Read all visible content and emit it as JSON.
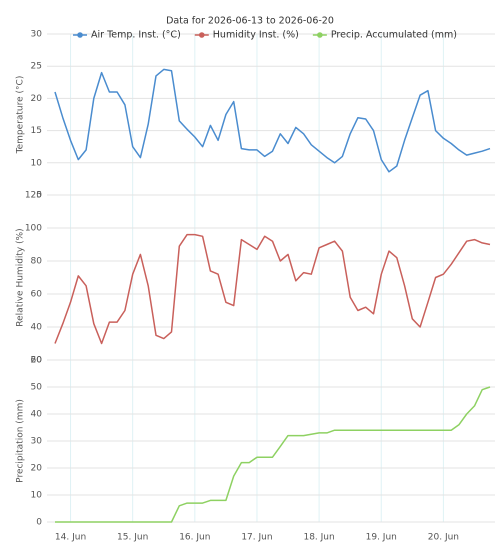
{
  "chart_data": {
    "type": "line",
    "title": "Data for 2026-06-13 to 2026-06-20",
    "categories": [
      null,
      null,
      "14. Jun",
      null,
      null,
      null,
      null,
      null,
      null,
      null,
      "15. Jun",
      null,
      null,
      null,
      null,
      null,
      null,
      null,
      "16. Jun",
      null,
      null,
      null,
      null,
      null,
      null,
      null,
      "17. Jun",
      null,
      null,
      null,
      null,
      null,
      null,
      null,
      "18. Jun",
      null,
      null,
      null,
      null,
      null,
      null,
      null,
      "19. Jun",
      null,
      null,
      null,
      null,
      null,
      null,
      null,
      "20. Jun",
      null,
      null,
      null,
      null,
      null,
      null
    ],
    "grid": true,
    "panels": [
      {
        "ylabel": "Temperature (°C)",
        "ylim": [
          5,
          30
        ],
        "yticks": [
          5,
          10,
          15,
          20,
          25,
          30
        ],
        "series": [
          {
            "name": "Air Temp. Inst. (°C)",
            "color": "#4a8ccf",
            "values": [
              21,
              17,
              13.5,
              10.5,
              12,
              20,
              24,
              21,
              21,
              19,
              12.5,
              10.8,
              16,
              23.5,
              24.5,
              24.3,
              16.5,
              15.2,
              14,
              12.5,
              15.8,
              13.5,
              17.5,
              19.5,
              12.2,
              12,
              12,
              11,
              11.8,
              14.5,
              13,
              15.5,
              14.5,
              12.8,
              11.8,
              10.8,
              10,
              11,
              14.5,
              17,
              16.8,
              15,
              10.5,
              8.6,
              9.5,
              13.5,
              17,
              20.5,
              21.2,
              15,
              13.8,
              13,
              12,
              11.2,
              11.5,
              11.8,
              12.2
            ]
          }
        ]
      },
      {
        "ylabel": "Relative Humidity (%)",
        "ylim": [
          20,
          120
        ],
        "yticks": [
          20,
          40,
          60,
          80,
          100,
          120
        ],
        "series": [
          {
            "name": "Humidity Inst. (%)",
            "color": "#c9605b",
            "values": [
              30,
              42,
              55,
              71,
              65,
              42,
              30,
              43,
              43,
              50,
              72,
              84,
              65,
              35,
              33,
              37,
              89,
              96,
              96,
              95,
              74,
              72,
              55,
              53,
              93,
              90,
              87,
              95,
              92,
              80,
              84,
              68,
              73,
              72,
              88,
              90,
              92,
              86,
              58,
              50,
              52,
              48,
              72,
              86,
              82,
              65,
              45,
              40,
              55,
              70,
              72,
              78,
              85,
              92,
              93,
              91,
              90
            ]
          }
        ]
      },
      {
        "ylabel": "Precipitation (mm)",
        "ylim": [
          0,
          60
        ],
        "yticks": [
          0,
          10,
          20,
          30,
          40,
          50,
          60
        ],
        "series": [
          {
            "name": "Precip. Accumulated (mm)",
            "color": "#8ed162",
            "values": [
              0,
              0,
              0,
              0,
              0,
              0,
              0,
              0,
              0,
              0,
              0,
              0,
              0,
              0,
              0,
              0,
              6,
              7,
              7,
              7,
              8,
              8,
              8,
              17,
              22,
              22,
              24,
              24,
              24,
              28,
              32,
              32,
              32,
              32.5,
              33,
              33,
              34,
              34,
              34,
              34,
              34,
              34,
              34,
              34,
              34,
              34,
              34,
              34,
              34,
              34,
              34,
              34,
              36,
              40,
              43,
              49,
              50
            ]
          }
        ]
      }
    ]
  }
}
